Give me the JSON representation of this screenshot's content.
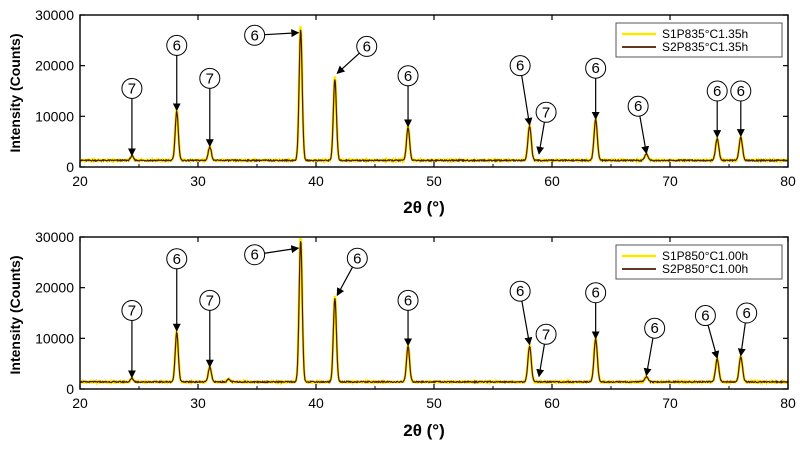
{
  "chart_data": [
    {
      "type": "line",
      "xlabel": "2θ (°)",
      "ylabel": "Intensity (Counts)",
      "xlim": [
        20,
        80
      ],
      "ylim": [
        0,
        30000
      ],
      "xticks": [
        20,
        30,
        40,
        50,
        60,
        70,
        80
      ],
      "yticks": [
        0,
        10000,
        20000,
        30000
      ],
      "grid": false,
      "legend_position": "top-right",
      "baseline": 1300,
      "peaks": [
        {
          "x": 24.4,
          "height": 900,
          "width": 0.12
        },
        {
          "x": 28.2,
          "height": 9700,
          "width": 0.13
        },
        {
          "x": 31.0,
          "height": 2700,
          "width": 0.13
        },
        {
          "x": 38.7,
          "height": 25800,
          "width": 0.13
        },
        {
          "x": 41.6,
          "height": 16000,
          "width": 0.13
        },
        {
          "x": 47.8,
          "height": 6500,
          "width": 0.13
        },
        {
          "x": 58.1,
          "height": 6800,
          "width": 0.14
        },
        {
          "x": 63.7,
          "height": 8000,
          "width": 0.14
        },
        {
          "x": 68.0,
          "height": 1300,
          "width": 0.14
        },
        {
          "x": 74.0,
          "height": 4300,
          "width": 0.14
        },
        {
          "x": 76.0,
          "height": 4500,
          "width": 0.14
        }
      ],
      "series": [
        {
          "name": "S1P835°C1.35h",
          "color": "#ffe800",
          "peak_scale": 1.03
        },
        {
          "name": "S2P835°C1.35h",
          "color": "#4a1a05",
          "peak_scale": 1.0
        }
      ],
      "annotations": [
        {
          "text": "7",
          "x": 24.4,
          "label_y": 15500,
          "target_y": 2300
        },
        {
          "text": "6",
          "x": 28.2,
          "label_y": 24000,
          "target_y": 11200
        },
        {
          "text": "7",
          "x": 31.0,
          "label_y": 17500,
          "target_y": 4100
        },
        {
          "text": "6",
          "label_x": 34.8,
          "label_y": 26000,
          "x": 38.5,
          "target_y": 26500
        },
        {
          "text": "6",
          "label_x": 44.3,
          "label_y": 23800,
          "x": 41.8,
          "target_y": 18500
        },
        {
          "text": "6",
          "x": 47.8,
          "label_y": 18000,
          "target_y": 8000
        },
        {
          "text": "6",
          "label_x": 57.3,
          "label_y": 20000,
          "x": 58.1,
          "target_y": 8300
        },
        {
          "text": "7",
          "label_x": 59.5,
          "label_y": 10800,
          "x": 58.9,
          "target_y": 2600
        },
        {
          "text": "6",
          "x": 63.7,
          "label_y": 19500,
          "target_y": 9500
        },
        {
          "text": "6",
          "label_x": 67.3,
          "label_y": 12000,
          "x": 68.0,
          "target_y": 2700
        },
        {
          "text": "6",
          "x": 74.0,
          "label_y": 15000,
          "target_y": 5900
        },
        {
          "text": "6",
          "x": 76.0,
          "label_y": 15000,
          "target_y": 6100
        }
      ]
    },
    {
      "type": "line",
      "xlabel": "2θ (°)",
      "ylabel": "Intensity (Counts)",
      "xlim": [
        20,
        80
      ],
      "ylim": [
        0,
        30000
      ],
      "xticks": [
        20,
        30,
        40,
        50,
        60,
        70,
        80
      ],
      "yticks": [
        0,
        10000,
        20000,
        30000
      ],
      "grid": false,
      "legend_position": "top-right",
      "baseline": 1400,
      "peaks": [
        {
          "x": 24.4,
          "height": 700,
          "width": 0.12
        },
        {
          "x": 28.2,
          "height": 9800,
          "width": 0.13
        },
        {
          "x": 31.0,
          "height": 2900,
          "width": 0.13
        },
        {
          "x": 32.6,
          "height": 500,
          "width": 0.13
        },
        {
          "x": 38.7,
          "height": 28000,
          "width": 0.13
        },
        {
          "x": 41.6,
          "height": 16500,
          "width": 0.13
        },
        {
          "x": 47.8,
          "height": 7000,
          "width": 0.13
        },
        {
          "x": 58.1,
          "height": 7000,
          "width": 0.14
        },
        {
          "x": 63.7,
          "height": 8500,
          "width": 0.14
        },
        {
          "x": 68.0,
          "height": 1000,
          "width": 0.14
        },
        {
          "x": 74.0,
          "height": 4500,
          "width": 0.14
        },
        {
          "x": 76.0,
          "height": 5000,
          "width": 0.14
        }
      ],
      "series": [
        {
          "name": "S1P850°C1.00h",
          "color": "#ffe800",
          "peak_scale": 1.03
        },
        {
          "name": "S2P850°C1.00h",
          "color": "#4a1a05",
          "peak_scale": 1.0
        }
      ],
      "annotations": [
        {
          "text": "7",
          "x": 24.4,
          "label_y": 15500,
          "target_y": 2300
        },
        {
          "text": "6",
          "x": 28.2,
          "label_y": 25700,
          "target_y": 11500
        },
        {
          "text": "7",
          "x": 31.0,
          "label_y": 17500,
          "target_y": 4400
        },
        {
          "text": "6",
          "label_x": 34.8,
          "label_y": 26500,
          "x": 38.5,
          "target_y": 27800
        },
        {
          "text": "6",
          "label_x": 43.5,
          "label_y": 25800,
          "x": 41.8,
          "target_y": 18500
        },
        {
          "text": "6",
          "x": 47.8,
          "label_y": 17500,
          "target_y": 8600
        },
        {
          "text": "6",
          "label_x": 57.3,
          "label_y": 19300,
          "x": 58.1,
          "target_y": 8800
        },
        {
          "text": "7",
          "label_x": 59.5,
          "label_y": 10800,
          "x": 58.9,
          "target_y": 2500
        },
        {
          "text": "6",
          "x": 63.7,
          "label_y": 19000,
          "target_y": 10000
        },
        {
          "text": "6",
          "label_x": 68.7,
          "label_y": 12000,
          "x": 68.0,
          "target_y": 2700
        },
        {
          "text": "6",
          "label_x": 73.0,
          "label_y": 14500,
          "x": 74.0,
          "target_y": 6100
        },
        {
          "text": "6",
          "label_x": 76.5,
          "label_y": 15000,
          "x": 76.0,
          "target_y": 6600
        }
      ]
    }
  ]
}
